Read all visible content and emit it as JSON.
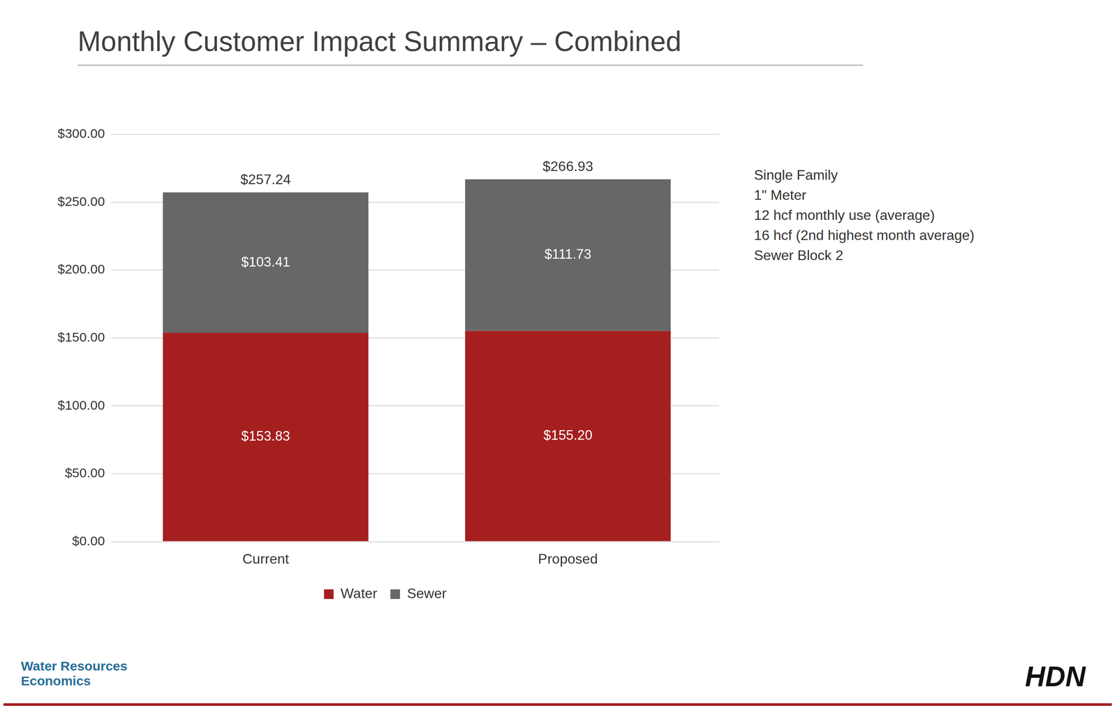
{
  "chart_data": {
    "type": "bar",
    "title": "Monthly Customer Impact Summary – Combined",
    "categories": [
      "Current",
      "Proposed"
    ],
    "stacked": true,
    "data_labels": true,
    "grid": true,
    "legend": "bottom",
    "series": [
      {
        "name": "Water",
        "color": "#a51f1f",
        "values": [
          153.83,
          155.2
        ],
        "value_labels": [
          "$153.83",
          "$155.20"
        ]
      },
      {
        "name": "Sewer",
        "color": "#676767",
        "values": [
          103.41,
          111.73
        ],
        "value_labels": [
          "$103.41",
          "$111.73"
        ]
      }
    ],
    "totals": [
      257.24,
      266.93
    ],
    "total_labels": [
      "$257.24",
      "$266.93"
    ],
    "ylim": [
      0,
      300
    ],
    "yticks": [
      {
        "value": 0,
        "label": "$0.00"
      },
      {
        "value": 50,
        "label": "$50.00"
      },
      {
        "value": 100,
        "label": "$100.00"
      },
      {
        "value": 150,
        "label": "$150.00"
      },
      {
        "value": 200,
        "label": "$200.00"
      },
      {
        "value": 250,
        "label": "$250.00"
      },
      {
        "value": 300,
        "label": "$300.00"
      }
    ],
    "annotations": [
      "Single Family",
      "1\" Meter",
      "12 hcf monthly use (average)",
      "16 hcf (2nd highest month average)",
      "Sewer Block 2"
    ],
    "footer": {
      "left": "Water Resources Economics",
      "right": "HDN"
    }
  }
}
